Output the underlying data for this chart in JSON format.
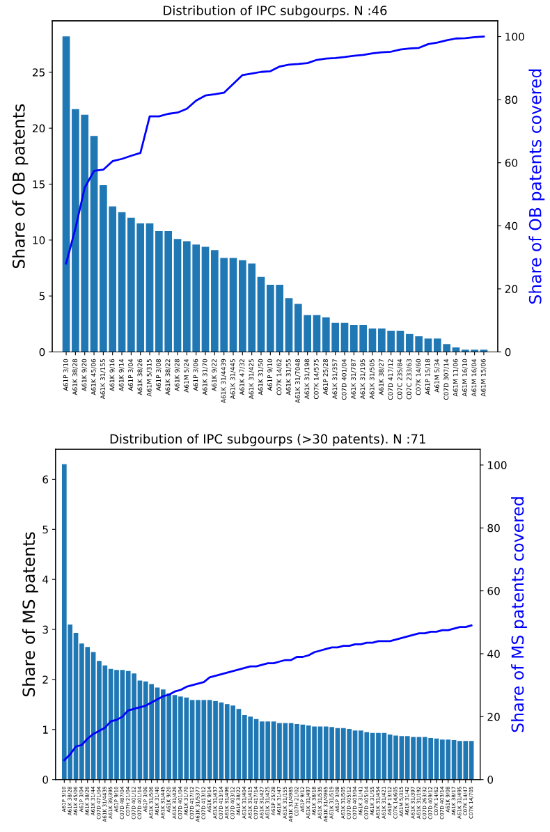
{
  "chart_data": [
    {
      "type": "bar",
      "title": "Distribution of IPC subgourps. N :46",
      "ylabel": "Share of OB patents",
      "y2label": "Share of OB patents covered",
      "categories": [
        "A61P 3/10",
        "A61K 38/28",
        "A61K 9/20",
        "A61K 45/06",
        "A61K 31/155",
        "A61K 9/16",
        "A61K 9/14",
        "A61P 3/04",
        "A61K 38/26",
        "A61M 5/315",
        "A61P 3/08",
        "A61K 38/22",
        "A61K 9/28",
        "A61M 5/24",
        "A61P 3/06",
        "A61K 31/70",
        "A61K 9/22",
        "A61K 31/4439",
        "A61K 31/445",
        "A61K 47/32",
        "A61K 31/425",
        "A61K 31/50",
        "A61P 9/10",
        "C07K 14/62",
        "A61K 31/55",
        "A61K 31/7048",
        "A61K 31/198",
        "C07K 14/575",
        "A61P 25/28",
        "A61K 31/357",
        "C07D 401/04",
        "A61K 31/787",
        "A61K 31/195",
        "A61K 31/505",
        "A61K 38/27",
        "C07D 417/12",
        "C07C 235/84",
        "C07C 233/63",
        "C07K 14/60",
        "A61P 15/18",
        "A61M 5/34",
        "C07D 307/14",
        "A61M 11/06",
        "A61M 16/10",
        "A61M 16/04",
        "A61M 15/06"
      ],
      "series": [
        {
          "color": "#1f77b4",
          "values": [
            28.2,
            21.7,
            21.2,
            19.3,
            14.9,
            13.0,
            12.5,
            12.0,
            11.5,
            11.5,
            10.8,
            10.8,
            10.1,
            9.9,
            9.6,
            9.4,
            9.1,
            8.4,
            8.4,
            8.2,
            7.9,
            6.7,
            6.0,
            6.0,
            4.8,
            4.3,
            3.3,
            3.3,
            3.1,
            2.6,
            2.6,
            2.4,
            2.4,
            2.1,
            2.1,
            1.9,
            1.9,
            1.6,
            1.4,
            1.2,
            1.2,
            0.7,
            0.4,
            0.2,
            0.2,
            0.2
          ]
        },
        {
          "type": "line",
          "axis": "y2",
          "color": "#0000ff",
          "values": [
            28.1,
            39.2,
            52.1,
            57.4,
            57.8,
            60.5,
            61.2,
            62.2,
            63.1,
            74.7,
            74.7,
            75.5,
            75.9,
            77.1,
            79.7,
            81.3,
            81.7,
            82.2,
            85.0,
            87.8,
            88.3,
            88.8,
            89.0,
            90.5,
            91.1,
            91.3,
            91.6,
            92.6,
            93.0,
            93.2,
            93.5,
            93.9,
            94.2,
            94.7,
            95.0,
            95.2,
            95.9,
            96.2,
            96.4,
            97.6,
            98.1,
            98.8,
            99.4,
            99.5,
            99.8,
            100
          ]
        }
      ],
      "ylim": [
        0,
        29.6
      ],
      "yticks": [
        0,
        5,
        10,
        15,
        20,
        25
      ],
      "y2lim": [
        0,
        105
      ],
      "y2ticks": [
        0,
        20,
        40,
        60,
        80,
        100
      ]
    },
    {
      "type": "bar",
      "title": "Distribution of IPC subgourps (>30 patents). N :71",
      "ylabel": "Share of MS patents",
      "y2label": "Share of MS patents covered",
      "categories": [
        "A61P 3/10",
        "A61K 38/28",
        "A61K 45/06",
        "A61P 3/04",
        "A61K 38/26",
        "A61K 31/44",
        "C07D 471/04",
        "A61K 31/4439",
        "A61K 39/395",
        "A61P 9/10",
        "C07D 487/04",
        "C07H 21/04",
        "C07D 401/12",
        "C07D 401/14",
        "A61P 3/06",
        "A61K 31/506",
        "A61K 31/40",
        "A61K 31/445",
        "A61K 9/20",
        "A61K 31/426",
        "C07D 401/04",
        "A61K 31/70",
        "C07D 417/12",
        "A61K 31/5377",
        "C07D 413/12",
        "A61K 9/14",
        "A61K 31/437",
        "C07D 413/14",
        "A61K 31/496",
        "C07D 403/12",
        "A61K 38/22",
        "A61K 31/404",
        "A61K 31/415",
        "C07D 417/14",
        "A61K 31/427",
        "A61K 31/425",
        "A61P 25/28",
        "A61K 31/47",
        "A61K 31/155",
        "A61K 31/4985",
        "C07H 21/02",
        "A61P 9/12",
        "A61K 31/497",
        "A61K 38/18",
        "A61K 31/535",
        "A61K 31/4965",
        "A61K 31/519",
        "A61P 3/08",
        "A61K 31/505",
        "C07D 405/12",
        "C07D 403/04",
        "A61K 31/41",
        "C07D 405/14",
        "A61K 31/55",
        "A61K 31/454",
        "A61K 31/421",
        "A61P 13/12",
        "C07K 14/605",
        "A61M 5/315",
        "A61K 31/42",
        "A61K 31/397",
        "A61K 31/192",
        "C07D 263/32",
        "C07D 409/12",
        "C07K 14/62",
        "C07D 403/14",
        "A61K 9/08",
        "A61K 38/17",
        "A61K 31/495",
        "C07K 14/47",
        "C07K 14/705"
      ],
      "series": [
        {
          "color": "#1f77b4",
          "values": [
            6.3,
            3.1,
            2.93,
            2.72,
            2.65,
            2.55,
            2.37,
            2.28,
            2.21,
            2.19,
            2.19,
            2.17,
            2.12,
            1.98,
            1.96,
            1.91,
            1.84,
            1.8,
            1.72,
            1.69,
            1.66,
            1.64,
            1.59,
            1.59,
            1.59,
            1.59,
            1.57,
            1.54,
            1.51,
            1.48,
            1.41,
            1.29,
            1.26,
            1.21,
            1.16,
            1.16,
            1.16,
            1.13,
            1.13,
            1.13,
            1.11,
            1.1,
            1.08,
            1.06,
            1.06,
            1.06,
            1.05,
            1.03,
            1.03,
            1.01,
            0.98,
            0.98,
            0.95,
            0.93,
            0.93,
            0.93,
            0.9,
            0.88,
            0.87,
            0.87,
            0.85,
            0.85,
            0.85,
            0.83,
            0.82,
            0.8,
            0.8,
            0.79,
            0.77,
            0.77,
            0.77
          ]
        },
        {
          "type": "line",
          "axis": "y2",
          "color": "#0000ff",
          "values": [
            6.2,
            8,
            10.5,
            11,
            13,
            14.5,
            15.5,
            16.5,
            18.5,
            19,
            20,
            22,
            22.5,
            23,
            23.5,
            24.5,
            25.5,
            26.5,
            27,
            28,
            28.5,
            29.5,
            30,
            30.5,
            31,
            32.5,
            33,
            33.5,
            34,
            34.5,
            35,
            35.5,
            36,
            36,
            36.5,
            37,
            37,
            37.5,
            38,
            38,
            39,
            39,
            39.5,
            40.5,
            41,
            41.5,
            42,
            42,
            42.5,
            42.5,
            43,
            43,
            43.5,
            43.5,
            44,
            44,
            44,
            44.5,
            45,
            45.5,
            46,
            46.5,
            46.5,
            47,
            47,
            47.5,
            47.5,
            48,
            48.5,
            48.5,
            49
          ]
        }
      ],
      "ylim": [
        0,
        6.6
      ],
      "yticks": [
        0,
        1,
        2,
        3,
        4,
        5,
        6
      ],
      "y2lim": [
        0,
        105
      ],
      "y2ticks": [
        0,
        20,
        40,
        60,
        80,
        100
      ]
    }
  ]
}
